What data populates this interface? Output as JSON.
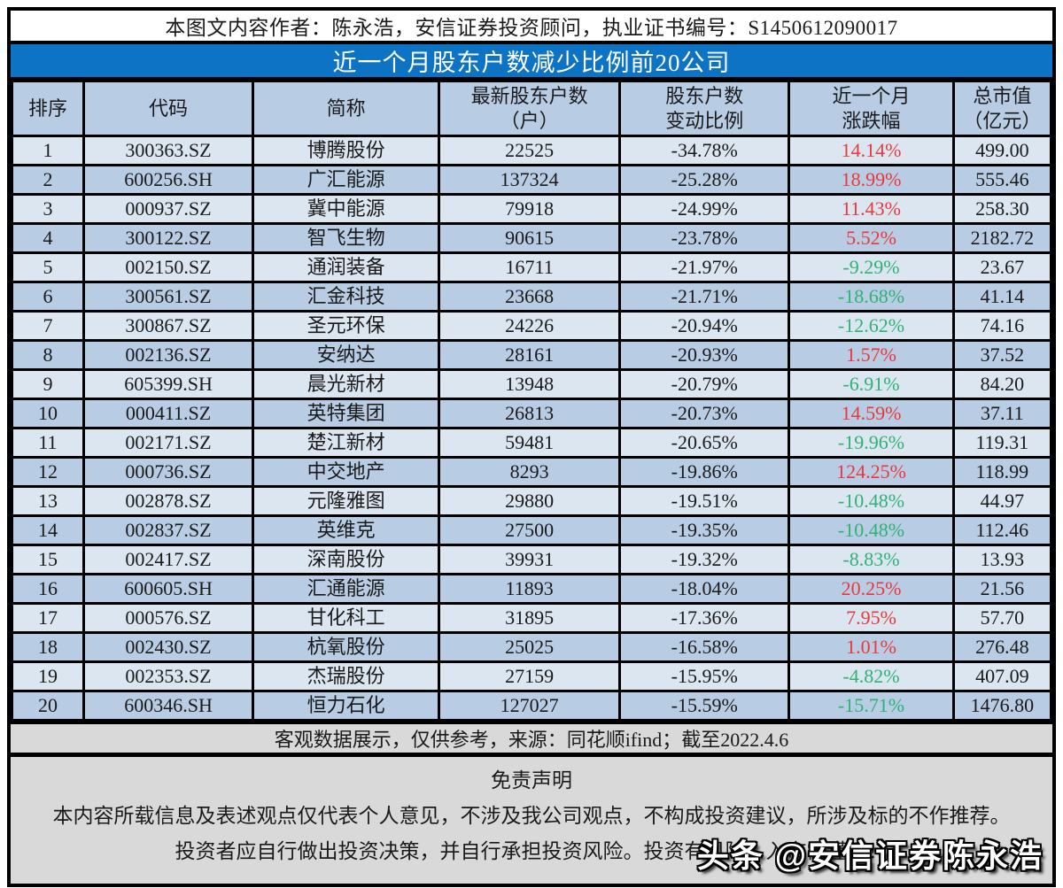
{
  "page": {
    "author_line": "本图文内容作者：陈永浩，安信证券投资顾问，执业证书编号：S1450612090017",
    "title": "近一个月股东户数减少比例前20公司",
    "source_line": "客观数据展示，仅供参考，来源：同花顺ifind；截至2022.4.6",
    "disclaimer_title": "免责声明",
    "disclaimer_line1": "本内容所载信息及表述观点仅代表个人意见，不涉及我公司观点，不构成投资建议，所涉及标的不作推荐。",
    "disclaimer_line2": "投资者应自行做出投资决策，并自行承担投资风险。投资有风险，入市需谨慎！",
    "watermark": "头条 @安信证券陈永浩"
  },
  "colors": {
    "title_bar": "#0d73c4",
    "header_row": "#b8cce4",
    "row_odd": "#dce6f1",
    "row_even": "#b8cce4",
    "footer_gray": "#d9d9d9",
    "up_red": "#e8393b",
    "down_green": "#2fb273"
  },
  "chart_data": {
    "type": "table",
    "title": "近一个月股东户数减少比例前20公司",
    "headers_display": [
      "排序",
      "代码",
      "简称",
      "最新股东户数\n（户）",
      "股东户数\n变动比例",
      "近一个月\n涨跌幅",
      "总市值\n（亿元）"
    ],
    "columns": [
      "排序",
      "代码",
      "简称",
      "最新股东户数（户）",
      "股东户数变动比例",
      "近一个月涨跌幅",
      "总市值（亿元）"
    ],
    "rows": [
      [
        "1",
        "300363.SZ",
        "博腾股份",
        "22525",
        "-34.78%",
        "14.14%",
        "499.00"
      ],
      [
        "2",
        "600256.SH",
        "广汇能源",
        "137324",
        "-25.28%",
        "18.99%",
        "555.46"
      ],
      [
        "3",
        "000937.SZ",
        "冀中能源",
        "79918",
        "-24.99%",
        "11.43%",
        "258.30"
      ],
      [
        "4",
        "300122.SZ",
        "智飞生物",
        "90615",
        "-23.78%",
        "5.52%",
        "2182.72"
      ],
      [
        "5",
        "002150.SZ",
        "通润装备",
        "16711",
        "-21.97%",
        "-9.29%",
        "23.67"
      ],
      [
        "6",
        "300561.SZ",
        "汇金科技",
        "23668",
        "-21.71%",
        "-18.68%",
        "41.14"
      ],
      [
        "7",
        "300867.SZ",
        "圣元环保",
        "24226",
        "-20.94%",
        "-12.62%",
        "74.16"
      ],
      [
        "8",
        "002136.SZ",
        "安纳达",
        "28161",
        "-20.93%",
        "1.57%",
        "37.52"
      ],
      [
        "9",
        "605399.SH",
        "晨光新材",
        "13948",
        "-20.79%",
        "-6.91%",
        "84.20"
      ],
      [
        "10",
        "000411.SZ",
        "英特集团",
        "26813",
        "-20.73%",
        "14.59%",
        "37.11"
      ],
      [
        "11",
        "002171.SZ",
        "楚江新材",
        "59481",
        "-20.65%",
        "-19.96%",
        "119.31"
      ],
      [
        "12",
        "000736.SZ",
        "中交地产",
        "8293",
        "-19.86%",
        "124.25%",
        "118.99"
      ],
      [
        "13",
        "002878.SZ",
        "元隆雅图",
        "29880",
        "-19.51%",
        "-10.48%",
        "44.97"
      ],
      [
        "14",
        "002837.SZ",
        "英维克",
        "27500",
        "-19.35%",
        "-10.48%",
        "112.46"
      ],
      [
        "15",
        "002417.SZ",
        "深南股份",
        "39931",
        "-19.32%",
        "-8.83%",
        "13.93"
      ],
      [
        "16",
        "600605.SH",
        "汇通能源",
        "11893",
        "-18.04%",
        "20.25%",
        "21.56"
      ],
      [
        "17",
        "000576.SZ",
        "甘化科工",
        "31895",
        "-17.36%",
        "7.95%",
        "57.70"
      ],
      [
        "18",
        "002430.SZ",
        "杭氧股份",
        "25025",
        "-16.58%",
        "1.01%",
        "276.48"
      ],
      [
        "19",
        "002353.SZ",
        "杰瑞股份",
        "27159",
        "-15.95%",
        "-4.82%",
        "407.09"
      ],
      [
        "20",
        "600346.SH",
        "恒力石化",
        "127027",
        "-15.59%",
        "-15.71%",
        "1476.80"
      ]
    ]
  }
}
